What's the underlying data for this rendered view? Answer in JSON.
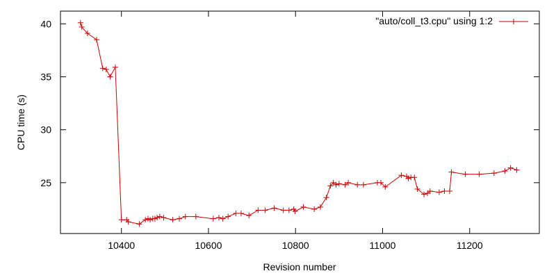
{
  "chart_data": {
    "type": "line",
    "title": "",
    "xlabel": "Revision number",
    "ylabel": "CPU time (s)",
    "xlim": [
      10260,
      11360
    ],
    "ylim": [
      20.2,
      41.2
    ],
    "x_ticks": [
      10400,
      10600,
      10800,
      11000,
      11200
    ],
    "y_ticks": [
      25,
      30,
      35,
      40
    ],
    "grid": false,
    "legend_position": "top-right",
    "series": [
      {
        "name": "\"auto/coll_t3.cpu\" using 1:2",
        "color": "#cc0000",
        "marker": "plus",
        "points": [
          [
            10306,
            40.1
          ],
          [
            10309,
            39.7
          ],
          [
            10322,
            39.1
          ],
          [
            10343,
            38.5
          ],
          [
            10357,
            35.8
          ],
          [
            10365,
            35.7
          ],
          [
            10374,
            35.0
          ],
          [
            10386,
            35.9
          ],
          [
            10400,
            21.5
          ],
          [
            10412,
            21.5
          ],
          [
            10416,
            21.3
          ],
          [
            10441,
            21.1
          ],
          [
            10455,
            21.5
          ],
          [
            10461,
            21.6
          ],
          [
            10466,
            21.5
          ],
          [
            10472,
            21.6
          ],
          [
            10477,
            21.6
          ],
          [
            10482,
            21.7
          ],
          [
            10488,
            21.8
          ],
          [
            10497,
            21.7
          ],
          [
            10518,
            21.5
          ],
          [
            10533,
            21.6
          ],
          [
            10547,
            21.8
          ],
          [
            10571,
            21.8
          ],
          [
            10611,
            21.6
          ],
          [
            10624,
            21.7
          ],
          [
            10633,
            21.6
          ],
          [
            10645,
            21.8
          ],
          [
            10663,
            22.1
          ],
          [
            10675,
            22.1
          ],
          [
            10693,
            21.9
          ],
          [
            10714,
            22.4
          ],
          [
            10730,
            22.4
          ],
          [
            10751,
            22.6
          ],
          [
            10772,
            22.4
          ],
          [
            10785,
            22.4
          ],
          [
            10796,
            22.5
          ],
          [
            10799,
            22.3
          ],
          [
            10818,
            22.7
          ],
          [
            10843,
            22.5
          ],
          [
            10857,
            22.7
          ],
          [
            10871,
            23.6
          ],
          [
            10880,
            24.7
          ],
          [
            10887,
            25.0
          ],
          [
            10893,
            24.8
          ],
          [
            10900,
            24.9
          ],
          [
            10914,
            24.8
          ],
          [
            10921,
            25.0
          ],
          [
            10942,
            24.8
          ],
          [
            10956,
            24.8
          ],
          [
            10988,
            25.0
          ],
          [
            10996,
            25.0
          ],
          [
            11006,
            24.6
          ],
          [
            11043,
            25.7
          ],
          [
            11055,
            25.6
          ],
          [
            11059,
            25.4
          ],
          [
            11065,
            25.5
          ],
          [
            11073,
            25.5
          ],
          [
            11080,
            24.4
          ],
          [
            11095,
            23.9
          ],
          [
            11103,
            24.0
          ],
          [
            11109,
            24.2
          ],
          [
            11130,
            24.1
          ],
          [
            11142,
            24.2
          ],
          [
            11154,
            24.2
          ],
          [
            11158,
            26.0
          ],
          [
            11190,
            25.8
          ],
          [
            11222,
            25.8
          ],
          [
            11256,
            25.9
          ],
          [
            11281,
            26.1
          ],
          [
            11294,
            26.4
          ],
          [
            11308,
            26.2
          ]
        ]
      }
    ]
  }
}
